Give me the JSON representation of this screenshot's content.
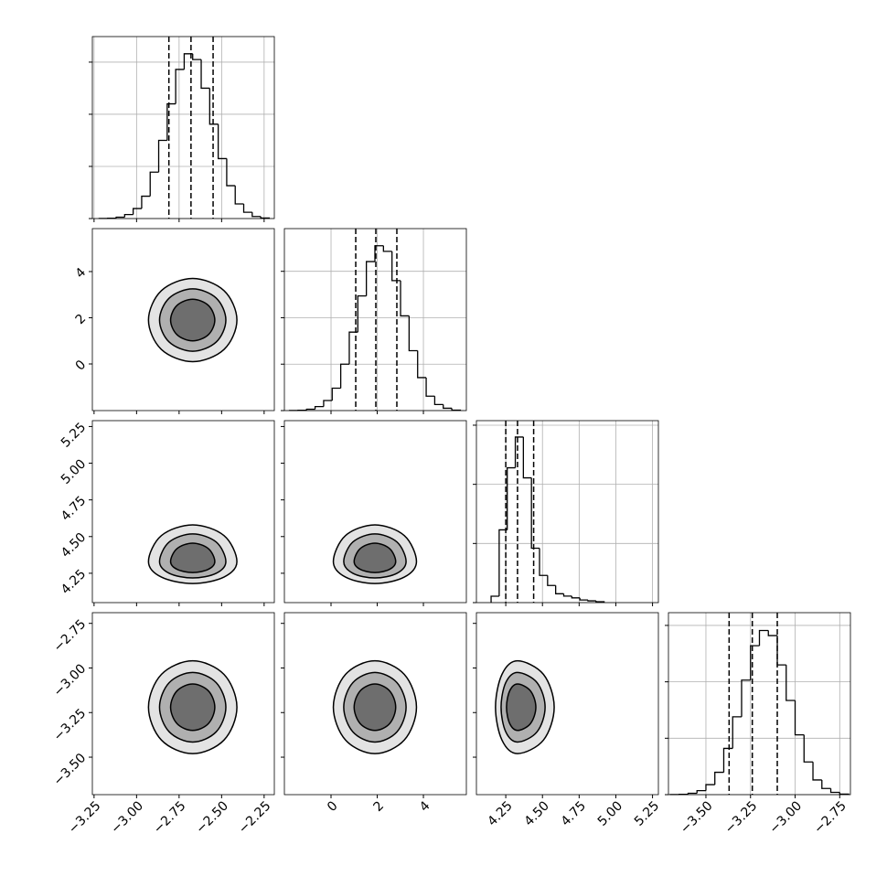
{
  "chart_data": {
    "type": "corner",
    "color": "#000000",
    "grid": true,
    "contour_fills": [
      "#e3e3e3",
      "#b0b0b0",
      "#6e6e6e"
    ],
    "axes": [
      {
        "lim": [
          -3.26,
          -2.19
        ],
        "ticks": [
          {
            "value": -3.25,
            "label": "−3.25"
          },
          {
            "value": -3.0,
            "label": "−3.00"
          },
          {
            "value": -2.75,
            "label": "−2.75"
          },
          {
            "value": -2.5,
            "label": "−2.50"
          },
          {
            "value": -2.25,
            "label": "−2.25"
          }
        ],
        "quantiles": [
          -2.81,
          -2.68,
          -2.55
        ],
        "hist": {
          "bins": [
            -3.22,
            -3.17,
            -3.12,
            -3.07,
            -3.02,
            -2.97,
            -2.92,
            -2.87,
            -2.82,
            -2.77,
            -2.72,
            -2.67,
            -2.62,
            -2.57,
            -2.52,
            -2.47,
            -2.42,
            -2.37,
            -2.32,
            -2.27,
            -2.22
          ],
          "counts": [
            2,
            7,
            26,
            77,
            192,
            429,
            890,
            1500,
            2200,
            2860,
            3160,
            3050,
            2500,
            1810,
            1150,
            630,
            280,
            120,
            40,
            10
          ],
          "ylim": [
            0,
            3490
          ],
          "yticks": [
            0,
            1000,
            2000,
            3000
          ]
        }
      },
      {
        "lim": [
          -2.02,
          5.86
        ],
        "ticks": [
          0,
          2,
          4
        ],
        "quantiles": [
          1.07,
          1.94,
          2.85
        ],
        "hist": {
          "bins": [
            -1.8,
            -1.43,
            -1.06,
            -0.69,
            -0.32,
            0.05,
            0.42,
            0.79,
            1.16,
            1.53,
            1.9,
            2.27,
            2.64,
            3.01,
            3.38,
            3.75,
            4.12,
            4.49,
            4.86,
            5.23,
            5.6
          ],
          "counts": [
            2,
            8,
            29,
            86,
            216,
            482,
            1000,
            1690,
            2470,
            3210,
            3550,
            3430,
            2800,
            2040,
            1290,
            710,
            310,
            130,
            50,
            10
          ],
          "ylim": [
            0,
            3920
          ],
          "yticks": [
            0,
            1000,
            2000,
            3000
          ]
        }
      },
      {
        "lim": [
          4.05,
          5.29
        ],
        "ticks": [
          4.25,
          {
            "value": 4.5,
            "label": "4.50"
          },
          4.75,
          {
            "value": 5.0,
            "label": "5.00"
          },
          5.25
        ],
        "quantiles": [
          4.25,
          4.33,
          4.44
        ],
        "hist": {
          "bins": [
            4.15,
            4.205,
            4.26,
            4.315,
            4.37,
            4.425,
            4.48,
            4.535,
            4.59,
            4.645,
            4.7,
            4.755,
            4.81,
            4.865,
            4.92
          ],
          "counts": [
            108,
            1230,
            2280,
            2800,
            2110,
            920,
            460,
            290,
            150,
            110,
            80,
            45,
            30,
            15
          ],
          "ylim": [
            0,
            3077
          ],
          "yticks": [
            0,
            1000,
            2000,
            3000
          ]
        }
      },
      {
        "lim": [
          -3.71,
          -2.69
        ],
        "ticks": [
          {
            "value": -3.5,
            "label": "−3.50"
          },
          {
            "value": -3.25,
            "label": "−3.25"
          },
          {
            "value": -3.0,
            "label": "−3.00"
          },
          {
            "value": -2.75,
            "label": "−2.75"
          }
        ],
        "quantiles": [
          -3.37,
          -3.24,
          -3.1
        ],
        "hist": {
          "bins": [
            -3.7,
            -3.65,
            -3.6,
            -3.55,
            -3.5,
            -3.45,
            -3.4,
            -3.35,
            -3.3,
            -3.25,
            -3.2,
            -3.15,
            -3.1,
            -3.05,
            -3.0,
            -2.95,
            -2.9,
            -2.85,
            -2.8,
            -2.75,
            -2.7
          ],
          "counts": [
            2,
            6,
            24,
            71,
            177,
            396,
            820,
            1380,
            2030,
            2640,
            2910,
            2820,
            2300,
            1670,
            1060,
            580,
            260,
            110,
            40,
            10
          ],
          "ylim": [
            0,
            3226
          ],
          "yticks": [
            0,
            1000,
            2000,
            3000
          ]
        }
      }
    ],
    "panels": [
      {
        "x_axis": 0,
        "y_axis": 1,
        "contours": [
          {
            "x": [
              -2.41,
              -2.486,
              -2.67,
              -2.854,
              -2.93,
              -2.854,
              -2.67,
              -2.486
            ],
            "y": [
              1.9,
              3.173,
              3.7,
              3.173,
              1.9,
              0.627,
              0.1,
              0.627
            ]
          },
          {
            "x": [
              -2.475,
              -2.532,
              -2.67,
              -2.808,
              -2.865,
              -2.808,
              -2.67,
              -2.532
            ],
            "y": [
              1.9,
              2.854,
              3.25,
              2.854,
              1.9,
              0.946,
              0.55,
              0.946
            ]
          },
          {
            "x": [
              -2.54,
              -2.578,
              -2.67,
              -2.762,
              -2.8,
              -2.762,
              -2.67,
              -2.578
            ],
            "y": [
              1.9,
              2.536,
              2.8,
              2.536,
              1.9,
              1.264,
              1.0,
              1.264
            ]
          }
        ]
      },
      {
        "x_axis": 0,
        "y_axis": 2,
        "contours": [
          {
            "x": [
              -2.41,
              -2.486,
              -2.67,
              -2.854,
              -2.93,
              -2.854,
              -2.67,
              -2.486
            ],
            "y": [
              4.33,
              4.507,
              4.58,
              4.507,
              4.33,
              4.224,
              4.18,
              4.224
            ]
          },
          {
            "x": [
              -2.475,
              -2.532,
              -2.67,
              -2.808,
              -2.865,
              -2.808,
              -2.67,
              -2.532
            ],
            "y": [
              4.33,
              4.463,
              4.518,
              4.463,
              4.33,
              4.25,
              4.218,
              4.25
            ]
          },
          {
            "x": [
              -2.54,
              -2.578,
              -2.67,
              -2.762,
              -2.8,
              -2.762,
              -2.67,
              -2.578
            ],
            "y": [
              4.33,
              4.418,
              4.455,
              4.418,
              4.33,
              4.277,
              4.255,
              4.277
            ]
          }
        ]
      },
      {
        "x_axis": 1,
        "y_axis": 2,
        "contours": [
          {
            "x": [
              3.7,
              3.173,
              1.9,
              0.627,
              0.1,
              0.627,
              1.9,
              3.173
            ],
            "y": [
              4.33,
              4.507,
              4.58,
              4.507,
              4.33,
              4.224,
              4.18,
              4.224
            ]
          },
          {
            "x": [
              3.25,
              2.854,
              1.9,
              0.946,
              0.55,
              0.946,
              1.9,
              2.854
            ],
            "y": [
              4.33,
              4.463,
              4.518,
              4.463,
              4.33,
              4.25,
              4.218,
              4.25
            ]
          },
          {
            "x": [
              2.8,
              2.536,
              1.9,
              1.264,
              1.0,
              1.264,
              1.9,
              2.536
            ],
            "y": [
              4.33,
              4.418,
              4.455,
              4.418,
              4.33,
              4.277,
              4.255,
              4.277
            ]
          }
        ]
      },
      {
        "x_axis": 0,
        "y_axis": 3,
        "contours": [
          {
            "x": [
              -2.41,
              -2.486,
              -2.67,
              -2.854,
              -2.93,
              -2.854,
              -2.67,
              -2.486
            ],
            "y": [
              -3.22,
              -3.036,
              -2.96,
              -3.036,
              -3.22,
              -3.404,
              -3.48,
              -3.404
            ]
          },
          {
            "x": [
              -2.475,
              -2.532,
              -2.67,
              -2.808,
              -2.865,
              -2.808,
              -2.67,
              -2.532
            ],
            "y": [
              -3.22,
              -3.082,
              -3.025,
              -3.082,
              -3.22,
              -3.358,
              -3.415,
              -3.358
            ]
          },
          {
            "x": [
              -2.54,
              -2.578,
              -2.67,
              -2.762,
              -2.8,
              -2.762,
              -2.67,
              -2.578
            ],
            "y": [
              -3.22,
              -3.128,
              -3.09,
              -3.128,
              -3.22,
              -3.312,
              -3.35,
              -3.312
            ]
          }
        ]
      },
      {
        "x_axis": 1,
        "y_axis": 3,
        "contours": [
          {
            "x": [
              3.7,
              3.173,
              1.9,
              0.627,
              0.1,
              0.627,
              1.9,
              3.173
            ],
            "y": [
              -3.22,
              -3.036,
              -2.96,
              -3.036,
              -3.22,
              -3.404,
              -3.48,
              -3.404
            ]
          },
          {
            "x": [
              3.25,
              2.854,
              1.9,
              0.946,
              0.55,
              0.946,
              1.9,
              2.854
            ],
            "y": [
              -3.22,
              -3.082,
              -3.025,
              -3.082,
              -3.22,
              -3.358,
              -3.415,
              -3.358
            ]
          },
          {
            "x": [
              2.8,
              2.536,
              1.9,
              1.264,
              1.0,
              1.264,
              1.9,
              2.536
            ],
            "y": [
              -3.22,
              -3.128,
              -3.09,
              -3.128,
              -3.22,
              -3.312,
              -3.35,
              -3.312
            ]
          }
        ]
      },
      {
        "x_axis": 2,
        "y_axis": 3,
        "contours": [
          {
            "x": [
              4.58,
              4.507,
              4.33,
              4.224,
              4.18,
              4.224,
              4.33,
              4.507
            ],
            "y": [
              -3.22,
              -3.036,
              -2.96,
              -3.036,
              -3.22,
              -3.404,
              -3.48,
              -3.404
            ]
          },
          {
            "x": [
              4.518,
              4.463,
              4.33,
              4.25,
              4.218,
              4.25,
              4.33,
              4.463
            ],
            "y": [
              -3.22,
              -3.082,
              -3.025,
              -3.082,
              -3.22,
              -3.358,
              -3.415,
              -3.358
            ]
          },
          {
            "x": [
              4.455,
              4.418,
              4.33,
              4.277,
              4.255,
              4.277,
              4.33,
              4.418
            ],
            "y": [
              -3.22,
              -3.128,
              -3.09,
              -3.128,
              -3.22,
              -3.312,
              -3.35,
              -3.312
            ]
          }
        ]
      }
    ]
  }
}
